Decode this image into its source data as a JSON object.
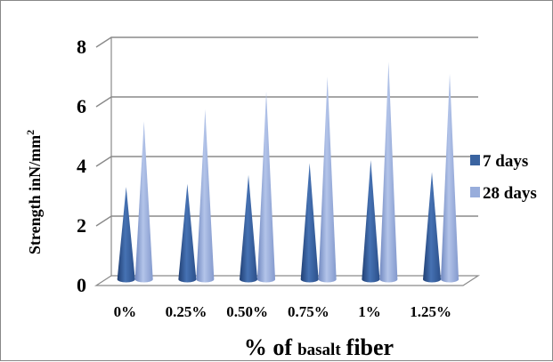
{
  "chart_data": {
    "type": "bar",
    "mark_shape": "3d-cone",
    "categories": [
      "0%",
      "0.25%",
      "0.50%",
      "0.75%",
      "1%",
      "1.25%"
    ],
    "series": [
      {
        "name": "7 days",
        "color": "#3a63a0",
        "values": [
          3.1,
          3.2,
          3.5,
          3.9,
          4.0,
          3.6
        ]
      },
      {
        "name": "28 days",
        "color": "#98addb",
        "values": [
          5.3,
          5.7,
          6.3,
          6.8,
          7.3,
          6.9
        ]
      }
    ],
    "yticks": [
      "0",
      "2",
      "4",
      "6",
      "8"
    ],
    "ylim": [
      0,
      8
    ],
    "ylabel_main": "Strength inN/mm",
    "ylabel_sup": "2",
    "xlabel_part1": "% of",
    "xlabel_part2": "basalt",
    "xlabel_part3": "fiber",
    "grid": true,
    "legend_position": "right"
  }
}
